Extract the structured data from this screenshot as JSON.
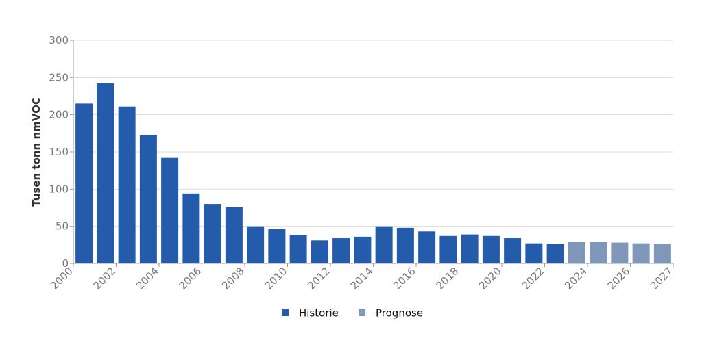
{
  "chart_data": {
    "type": "bar",
    "title": "",
    "xlabel": "",
    "ylabel": "Tusen tonn nmVOC",
    "ylim": [
      0,
      300
    ],
    "yticks": [
      0,
      50,
      100,
      150,
      200,
      250,
      300
    ],
    "grid": true,
    "legend_placement": "bottom-center",
    "categories": [
      2000,
      2001,
      2002,
      2003,
      2004,
      2005,
      2006,
      2007,
      2008,
      2009,
      2010,
      2011,
      2012,
      2013,
      2014,
      2015,
      2016,
      2017,
      2018,
      2019,
      2020,
      2021,
      2022,
      2023,
      2024,
      2025,
      2026,
      2027
    ],
    "xtick_labels": [
      2000,
      2002,
      2004,
      2006,
      2008,
      2010,
      2012,
      2014,
      2016,
      2018,
      2020,
      2022,
      2024,
      2026,
      2027
    ],
    "series": [
      {
        "name": "Historie",
        "color": "#245cab",
        "values": [
          215,
          242,
          211,
          173,
          142,
          94,
          80,
          76,
          50,
          46,
          38,
          31,
          34,
          36,
          50,
          48,
          43,
          37,
          39,
          37,
          34,
          27,
          26,
          null,
          null,
          null,
          null,
          null
        ]
      },
      {
        "name": "Prognose",
        "color": "#7f97b9",
        "values": [
          null,
          null,
          null,
          null,
          null,
          null,
          null,
          null,
          null,
          null,
          null,
          null,
          null,
          null,
          null,
          null,
          null,
          null,
          null,
          null,
          null,
          null,
          null,
          29,
          29,
          28,
          27,
          26
        ]
      }
    ]
  }
}
